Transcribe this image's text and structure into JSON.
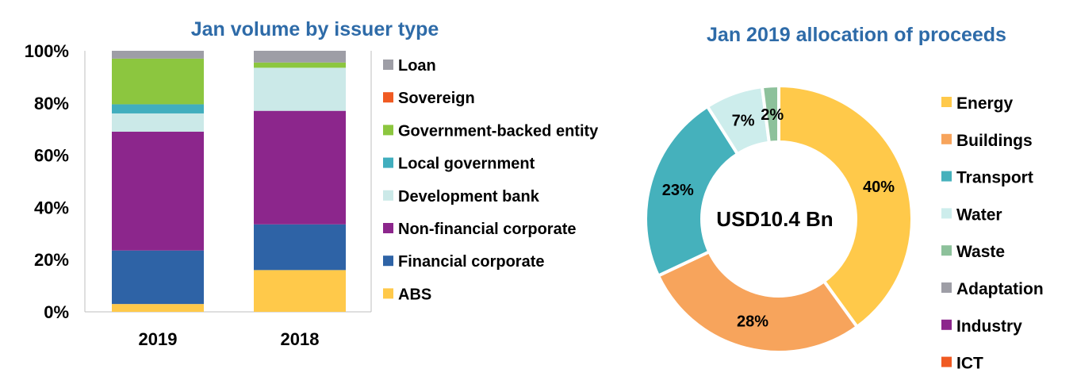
{
  "colors": {
    "title": "#2E6BA8",
    "text": "#000000",
    "axis": "#BFBFBF",
    "Loan": "#9E9EA6",
    "Sovereign": "#F05A22",
    "Government-backed entity": "#8CC63F",
    "Local government": "#41AEBE",
    "Development bank": "#CBE9E8",
    "Non-financial corporate": "#8C268C",
    "Financial corporate": "#2E63A6",
    "ABS": "#FFC94A",
    "Energy": "#FFC94A",
    "Buildings": "#F7A45C",
    "Transport": "#45B1BC",
    "Water": "#CDEDEC",
    "Waste": "#8DC19B",
    "Adaptation": "#9E9EA6",
    "Industry": "#8C268C",
    "ICT": "#F05A22"
  },
  "chart_data": [
    {
      "type": "bar",
      "stacked": true,
      "title": "Jan volume by issuer type",
      "categories": [
        "2019",
        "2018"
      ],
      "yticks": [
        "0%",
        "20%",
        "40%",
        "60%",
        "80%",
        "100%"
      ],
      "ylim": [
        0,
        100
      ],
      "legend_position": "right",
      "series": [
        {
          "name": "ABS",
          "values": [
            3,
            16
          ]
        },
        {
          "name": "Financial corporate",
          "values": [
            20.5,
            17.5
          ]
        },
        {
          "name": "Non-financial corporate",
          "values": [
            45.5,
            43.5
          ]
        },
        {
          "name": "Development bank",
          "values": [
            7,
            16.5
          ]
        },
        {
          "name": "Local government",
          "values": [
            3.5,
            0
          ]
        },
        {
          "name": "Government-backed entity",
          "values": [
            17.5,
            2
          ]
        },
        {
          "name": "Sovereign",
          "values": [
            0,
            0
          ]
        },
        {
          "name": "Loan",
          "values": [
            3,
            4.5
          ]
        }
      ]
    },
    {
      "type": "pie",
      "donut": true,
      "title": "Jan 2019 allocation of proceeds",
      "center_label": "USD10.4 Bn",
      "legend_position": "right",
      "slices": [
        {
          "name": "Energy",
          "value": 40,
          "label": "40%"
        },
        {
          "name": "Buildings",
          "value": 28,
          "label": "28%"
        },
        {
          "name": "Transport",
          "value": 23,
          "label": "23%"
        },
        {
          "name": "Water",
          "value": 7,
          "label": "7%"
        },
        {
          "name": "Waste",
          "value": 2,
          "label": "2%"
        },
        {
          "name": "Adaptation",
          "value": 0,
          "label": ""
        },
        {
          "name": "Industry",
          "value": 0,
          "label": ""
        },
        {
          "name": "ICT",
          "value": 0,
          "label": ""
        }
      ]
    }
  ]
}
